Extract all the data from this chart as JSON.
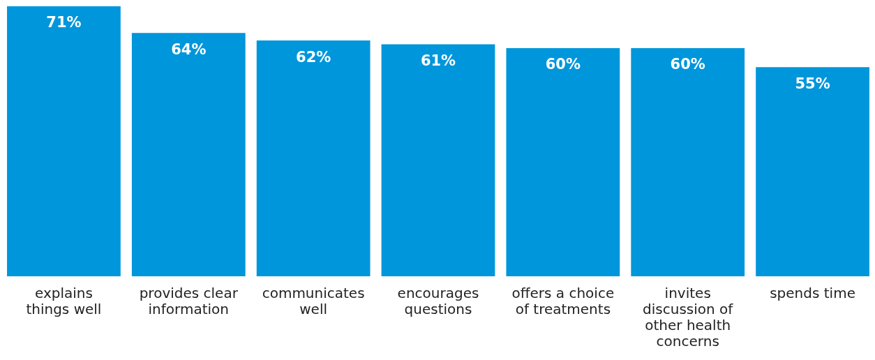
{
  "chart_data": {
    "type": "bar",
    "categories": [
      "explains things well",
      "provides clear information",
      "communicates well",
      "encourages questions",
      "offers a choice of treatments",
      "invites discussion of other health concerns",
      "spends time"
    ],
    "values": [
      71,
      64,
      62,
      61,
      60,
      60,
      55
    ],
    "value_labels": [
      "71%",
      "64%",
      "62%",
      "61%",
      "60%",
      "60%",
      "55%"
    ],
    "color": "#0096db",
    "ylim": [
      0,
      71
    ],
    "grid": false,
    "legend": false
  }
}
